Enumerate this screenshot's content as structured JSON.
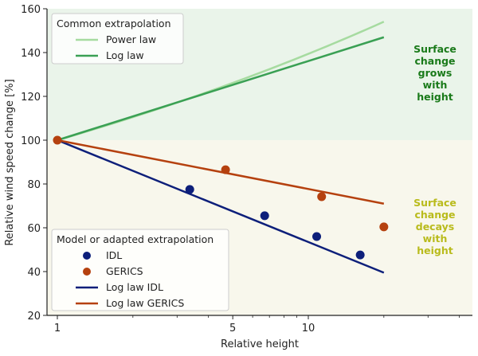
{
  "chart_data": {
    "type": "line",
    "title": "",
    "xlabel": "Relative height",
    "ylabel": "Relative wind speed change [%]",
    "xscale": "log",
    "xlim": [
      0.93,
      45
    ],
    "ylim": [
      20,
      160
    ],
    "xticks": [
      {
        "value": 1,
        "label": "1"
      },
      {
        "value": 5,
        "label": "5"
      },
      {
        "value": 10,
        "label": "10"
      }
    ],
    "xminor": [
      2,
      3,
      4,
      6,
      7,
      8,
      9,
      20,
      30,
      40
    ],
    "yticks": [
      20,
      40,
      60,
      80,
      100,
      120,
      140,
      160
    ],
    "regions": [
      {
        "name": "grows",
        "from": 100,
        "to": 160,
        "color": "#eaf4ea",
        "annotation": [
          "Surface",
          "change",
          "grows",
          "with",
          "height"
        ],
        "annotation_color": "#1a7a1a"
      },
      {
        "name": "decays",
        "from": 20,
        "to": 100,
        "color": "#f8f7ec",
        "annotation": [
          "Surface",
          "change",
          "decays",
          "with",
          "height"
        ],
        "annotation_color": "#b9bb1c"
      }
    ],
    "series": [
      {
        "name": "Power law",
        "kind": "line",
        "color": "#a6dba0",
        "x": [
          1,
          2,
          5,
          10,
          20
        ],
        "y": [
          100,
          110.6,
          126.2,
          139.6,
          154.3
        ]
      },
      {
        "name": "Log law",
        "kind": "line",
        "color": "#3aa054",
        "x": [
          1,
          20
        ],
        "y": [
          100,
          147
        ]
      },
      {
        "name": "Log law IDL",
        "kind": "line",
        "color": "#0d1f7a",
        "x": [
          1,
          20
        ],
        "y": [
          100,
          39.5
        ]
      },
      {
        "name": "Log law GERICS",
        "kind": "line",
        "color": "#b5410f",
        "x": [
          1,
          20
        ],
        "y": [
          100,
          71
        ]
      },
      {
        "name": "IDL",
        "kind": "scatter",
        "color": "#0d1f7a",
        "x": [
          3.37,
          6.7,
          10.8,
          16.1
        ],
        "y": [
          77.5,
          65.5,
          56,
          47.6
        ]
      },
      {
        "name": "GERICS",
        "kind": "scatter",
        "color": "#b5410f",
        "x": [
          1,
          4.68,
          11.3,
          20
        ],
        "y": [
          100,
          86.5,
          74.2,
          60.4
        ]
      }
    ],
    "legends": [
      {
        "title": "Common extrapolation",
        "placement": "top-left",
        "entries": [
          {
            "label": "Power law",
            "kind": "line",
            "color": "#a6dba0"
          },
          {
            "label": "Log law",
            "kind": "line",
            "color": "#3aa054"
          }
        ]
      },
      {
        "title": "Model or adapted extrapolation",
        "placement": "bottom-left",
        "entries": [
          {
            "label": "IDL",
            "kind": "marker",
            "color": "#0d1f7a"
          },
          {
            "label": "GERICS",
            "kind": "marker",
            "color": "#b5410f"
          },
          {
            "label": "Log law IDL",
            "kind": "line",
            "color": "#0d1f7a"
          },
          {
            "label": "Log law GERICS",
            "kind": "line",
            "color": "#b5410f"
          }
        ]
      }
    ]
  }
}
